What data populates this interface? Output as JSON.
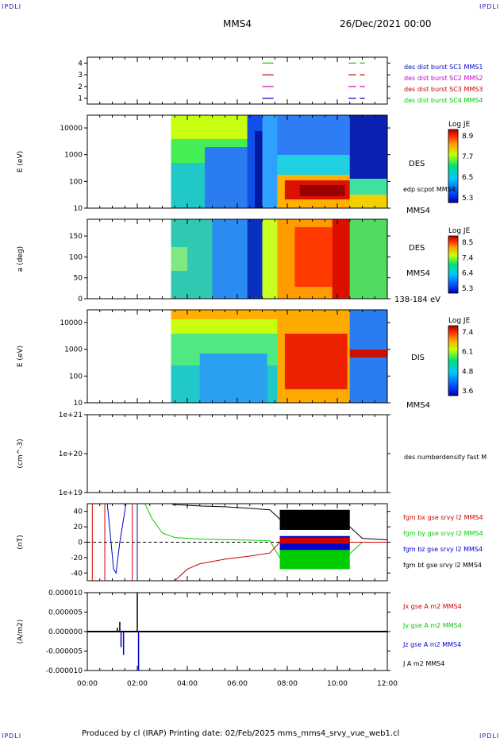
{
  "corners": {
    "tl": "IPDLI",
    "tr": "IPDLI",
    "bl": "IPDLI",
    "br": "IPDLI"
  },
  "header": {
    "mission": "MMS4",
    "date": "26/Dec/2021 00:00"
  },
  "footer": {
    "text": "Produced by cl (IRAP)   Printing date: 02/Feb/2025   mms_mms4_srvy_vue_web1.cl"
  },
  "colors": {
    "blue": "#0000cc",
    "magenta": "#cc00cc",
    "red": "#cc0000",
    "green": "#00cc00",
    "black": "#000000"
  },
  "chart_data": [
    {
      "type": "scatter",
      "panel": "burst-availability",
      "y_ticks": [
        "1",
        "2",
        "3",
        "4"
      ],
      "ylim": [
        0.5,
        4.5
      ],
      "xlim_hours": [
        0,
        12
      ],
      "legend": [
        {
          "name": "des dist burst SC1 MMS1",
          "color": "#0000cc"
        },
        {
          "name": "des dist burst SC2 MMS2",
          "color": "#cc00cc"
        },
        {
          "name": "des dist burst SC3 MMS3",
          "color": "#cc0000"
        },
        {
          "name": "des dist burst SC4 MMS4",
          "color": "#00cc00"
        }
      ],
      "segments": [
        {
          "level": 4,
          "color": "#00cc00",
          "ranges": [
            [
              7.0,
              7.45
            ],
            [
              10.45,
              10.75
            ],
            [
              10.9,
              11.1
            ]
          ]
        },
        {
          "level": 3,
          "color": "#cc0000",
          "ranges": [
            [
              7.0,
              7.45
            ],
            [
              10.45,
              10.75
            ],
            [
              10.9,
              11.1
            ]
          ]
        },
        {
          "level": 2,
          "color": "#cc00cc",
          "ranges": [
            [
              7.0,
              7.45
            ],
            [
              10.45,
              10.75
            ],
            [
              10.9,
              11.1
            ]
          ]
        },
        {
          "level": 1,
          "color": "#0000cc",
          "ranges": [
            [
              7.0,
              7.45
            ],
            [
              10.45,
              10.75
            ],
            [
              10.9,
              11.1
            ]
          ]
        }
      ]
    },
    {
      "type": "heatmap",
      "panel": "des-energy",
      "ylabel": "E (eV)",
      "yscale": "log",
      "ylim": [
        10,
        30000
      ],
      "y_ticks": [
        "10",
        "100",
        "1000",
        "10000"
      ],
      "colorbar": {
        "label": "Log JE",
        "ticks": [
          "8.9",
          "7.7",
          "6.5",
          "5.3"
        ],
        "range": [
          5.3,
          8.9
        ]
      },
      "labels": [
        "DES",
        "edp scpot MMS4",
        "MMS4"
      ]
    },
    {
      "type": "heatmap",
      "panel": "des-pitch-angle",
      "ylabel": "a (deg)",
      "ylim": [
        0,
        180
      ],
      "y_ticks": [
        "0",
        "50",
        "100",
        "150"
      ],
      "colorbar": {
        "label": "Log JE",
        "ticks": [
          "8.5",
          "7.4",
          "6.4",
          "5.3"
        ],
        "range": [
          5.3,
          8.5
        ]
      },
      "labels": [
        "DES",
        "MMS4",
        "138-184 eV"
      ]
    },
    {
      "type": "heatmap",
      "panel": "dis-energy",
      "ylabel": "E (eV)",
      "yscale": "log",
      "ylim": [
        10,
        30000
      ],
      "y_ticks": [
        "10",
        "100",
        "1000",
        "10000"
      ],
      "colorbar": {
        "label": "Log JE",
        "ticks": [
          "7.4",
          "6.1",
          "4.8",
          "3.6"
        ],
        "range": [
          3.6,
          7.4
        ]
      },
      "labels": [
        "DIS",
        "MMS4"
      ]
    },
    {
      "type": "line",
      "panel": "density",
      "ylabel": "(cm^-3)",
      "yscale": "log",
      "ylim": [
        1e+19,
        1e+21
      ],
      "y_ticks": [
        "1e+19",
        "1e+20",
        "1e+21"
      ],
      "legend": [
        {
          "name": "des numberdensity fast M",
          "color": "#000000"
        }
      ]
    },
    {
      "type": "line",
      "panel": "fgm-b",
      "ylabel": "(nT)",
      "ylim": [
        -50,
        50
      ],
      "y_ticks": [
        "-40",
        "-20",
        "0",
        "20",
        "40"
      ],
      "legend": [
        {
          "name": "fgm bx gse srvy l2 MMS4",
          "color": "#cc0000"
        },
        {
          "name": "fgm by gse srvy l2 MMS4",
          "color": "#00cc00"
        },
        {
          "name": "fgm bz gse srvy l2 MMS4",
          "color": "#0000cc"
        },
        {
          "name": "fgm bt gse srvy l2 MMS4",
          "color": "#000000"
        }
      ],
      "series": [
        {
          "name": "fgm bt gse srvy l2 MMS4",
          "x": [
            3.4,
            4.5,
            5.5,
            6.5,
            7.3,
            7.7,
            8.5,
            9.5,
            10.5,
            11.0,
            12.0
          ],
          "values": [
            49,
            47,
            46,
            44,
            42,
            30,
            27,
            24,
            20,
            5,
            3
          ]
        },
        {
          "name": "fgm by gse srvy l2 MMS4",
          "x": [
            2.3,
            2.6,
            3.0,
            3.5,
            4.5,
            6.0,
            7.3,
            7.7,
            8.5,
            10.5,
            11.0,
            12.0
          ],
          "values": [
            50,
            30,
            12,
            6,
            4,
            3,
            2,
            -20,
            -25,
            -15,
            0,
            0
          ]
        },
        {
          "name": "fgm bx gse srvy l2 MMS4",
          "x": [
            3.5,
            4.0,
            4.5,
            5.5,
            6.5,
            7.3,
            7.7,
            8.5,
            10.5,
            11.0,
            12.0
          ],
          "values": [
            -50,
            -35,
            -28,
            -22,
            -18,
            -14,
            0,
            3,
            0,
            0,
            0
          ]
        },
        {
          "name": "fgm bz gse srvy l2 MMS4",
          "x": [
            0.8,
            0.95,
            1.05,
            1.15,
            1.3,
            1.55
          ],
          "values": [
            50,
            0,
            -35,
            -40,
            0,
            50
          ]
        }
      ]
    },
    {
      "type": "line",
      "panel": "current-density",
      "ylabel": "(A/m2)",
      "ylim": [
        -0.0001,
        0.0001
      ],
      "y_ticks": [
        "-0.000010",
        "-0.000005",
        "0.000000",
        "0.000005",
        "0.000010"
      ],
      "xlabel_ticks": [
        "00:00",
        "02:00",
        "04:00",
        "06:00",
        "08:00",
        "10:00",
        "12:00"
      ],
      "xlim_hours": [
        0,
        12
      ],
      "legend": [
        {
          "name": "Jx gse A m2 MMS4",
          "color": "#cc0000"
        },
        {
          "name": "Jy gse A m2 MMS4",
          "color": "#00cc00"
        },
        {
          "name": "Jz gse A m2 MMS4",
          "color": "#0000cc"
        },
        {
          "name": "J A m2 MMS4",
          "color": "#000000"
        }
      ]
    }
  ]
}
